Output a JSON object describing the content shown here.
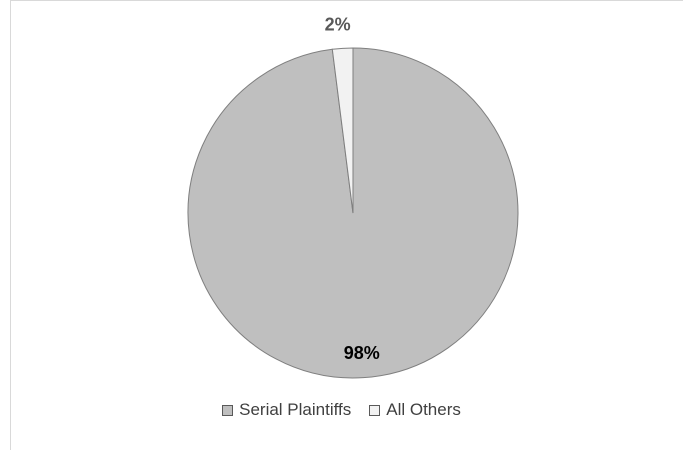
{
  "chart_data": {
    "type": "pie",
    "categories": [
      "Serial Plaintiffs",
      "All Others"
    ],
    "values": [
      98,
      2
    ],
    "data_labels": [
      "98%",
      "2%"
    ],
    "colors": [
      "#bfbfbf",
      "#f2f2f2"
    ],
    "label_colors": [
      "#000000",
      "#595959"
    ],
    "title": "",
    "legend_position": "bottom"
  },
  "legend": {
    "items": [
      {
        "label": "Serial Plaintiffs",
        "color": "#bfbfbf"
      },
      {
        "label": "All Others",
        "color": "#f2f2f2"
      }
    ]
  }
}
